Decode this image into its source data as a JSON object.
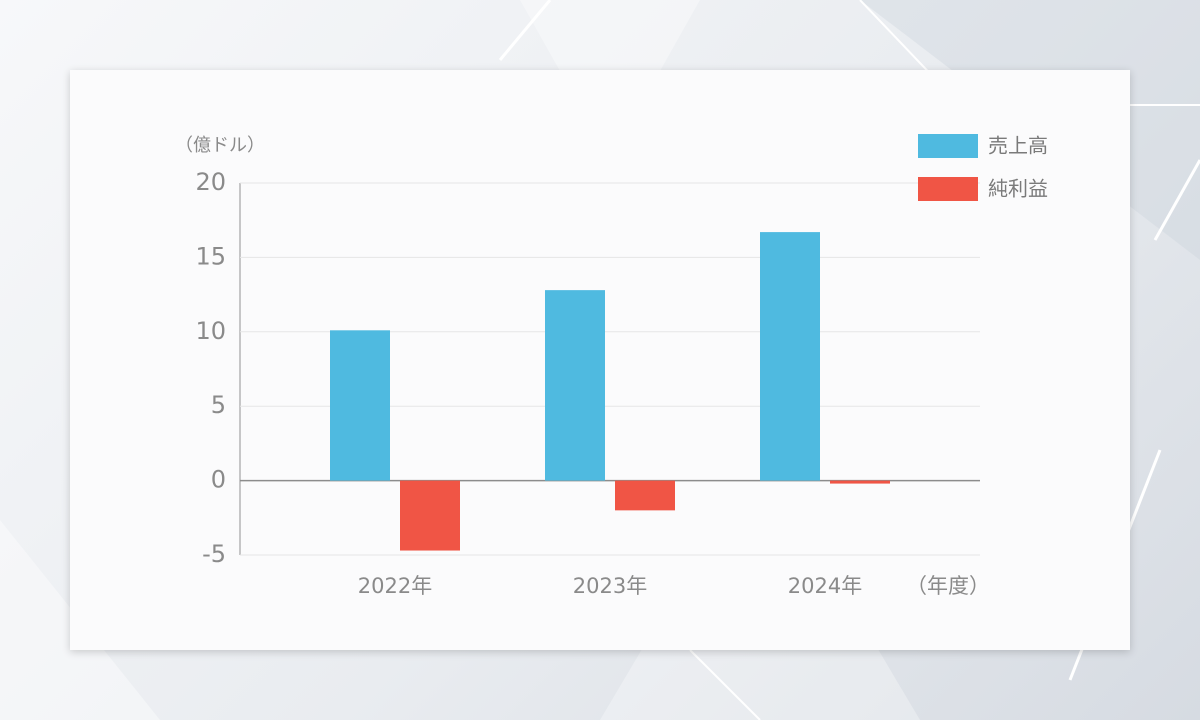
{
  "chart_data": {
    "type": "bar",
    "y_axis_label": "（億ドル）",
    "x_axis_label": "（年度）",
    "categories": [
      "2022年",
      "2023年",
      "2024年"
    ],
    "series": [
      {
        "name": "売上高",
        "color": "#4fbae0",
        "values": [
          10.1,
          12.8,
          16.7
        ]
      },
      {
        "name": "純利益",
        "color": "#f05545",
        "values": [
          -4.7,
          -2.0,
          -0.2
        ]
      }
    ],
    "ylim": [
      -5,
      20
    ],
    "yticks": [
      -5,
      0,
      5,
      10,
      15,
      20
    ],
    "grid": true,
    "legend": "upper right"
  }
}
